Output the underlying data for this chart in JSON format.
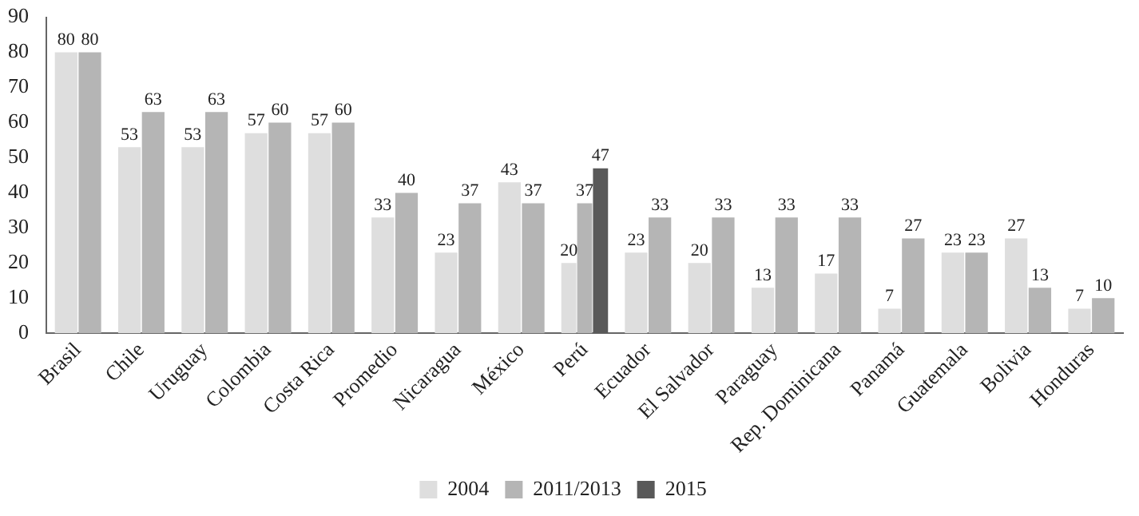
{
  "chart_data": {
    "type": "bar",
    "categories": [
      "Brasil",
      "Chile",
      "Uruguay",
      "Colombia",
      "Costa Rica",
      "Promedio",
      "Nicaragua",
      "México",
      "Perú",
      "Ecuador",
      "El Salvador",
      "Paraguay",
      "Rep. Dominicana",
      "Panamá",
      "Guatemala",
      "Bolivia",
      "Honduras"
    ],
    "series": [
      {
        "name": "2004",
        "color": "#dedede",
        "values": [
          80,
          53,
          53,
          57,
          57,
          33,
          23,
          43,
          20,
          23,
          20,
          13,
          17,
          7,
          23,
          27,
          7
        ]
      },
      {
        "name": "2011/2013",
        "color": "#b5b5b5",
        "values": [
          80,
          63,
          63,
          60,
          60,
          40,
          37,
          37,
          37,
          33,
          33,
          33,
          33,
          27,
          23,
          13,
          10
        ]
      },
      {
        "name": "2015",
        "color": "#595959",
        "values": [
          null,
          null,
          null,
          null,
          null,
          null,
          null,
          null,
          47,
          null,
          null,
          null,
          null,
          null,
          null,
          null,
          null
        ]
      }
    ],
    "ylim": [
      0,
      90
    ],
    "yticks": [
      0,
      10,
      20,
      30,
      40,
      50,
      60,
      70,
      80,
      90
    ],
    "grid": false,
    "legend": "bottom",
    "data_labels": true
  }
}
